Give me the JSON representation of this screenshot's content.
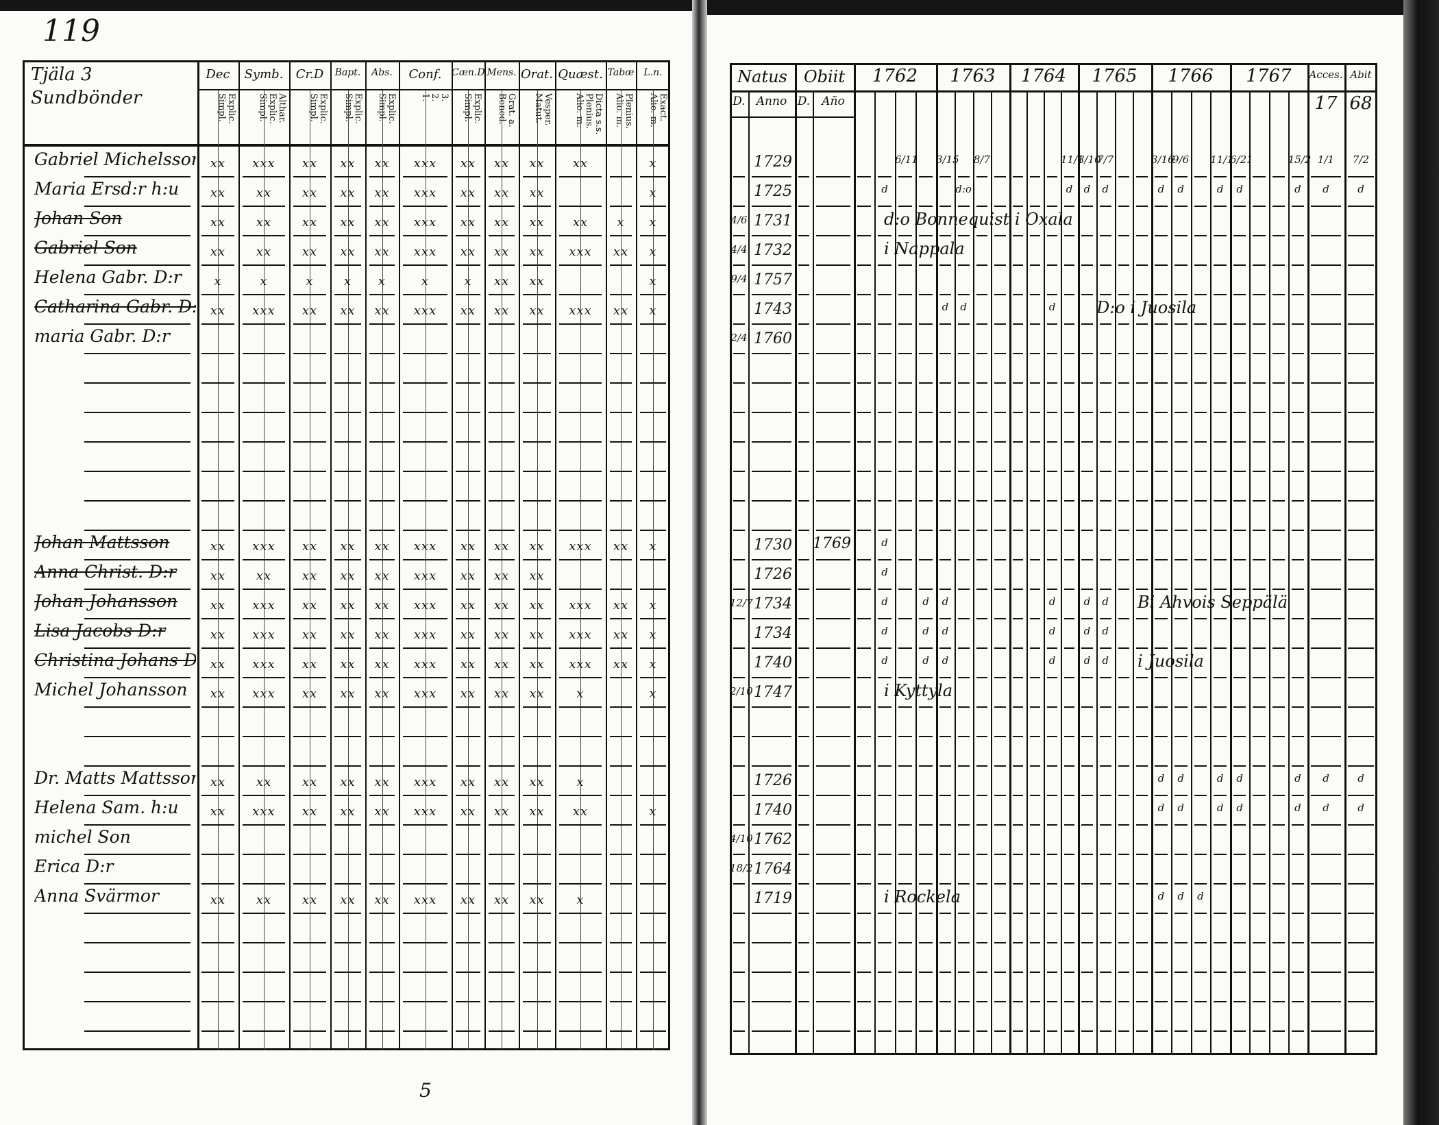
{
  "left_page": {
    "page_number": "119",
    "footer_number": "5",
    "household_heading": "Tjäla 3 Sundbönder",
    "columns": [
      {
        "label": "Dec",
        "sub": "Explic.\nSimpl."
      },
      {
        "label": "Symb.",
        "sub": "Althar.\nExplic.\nSimpl."
      },
      {
        "label": "Cr.D",
        "sub": "Explic.\nSimpl."
      },
      {
        "label": "Bapt.",
        "sub": "Explic.\nSimpl."
      },
      {
        "label": "Abs.",
        "sub": "Explic.\nSimpl."
      },
      {
        "label": "Conf.",
        "sub": "3.\n2.\n1."
      },
      {
        "label": "Cæn.D",
        "sub": "Explic.\nSimpl."
      },
      {
        "label": "Mens.",
        "sub": "Grat. a.\nBened."
      },
      {
        "label": "Orat.",
        "sub": "Vesper.\nMatut."
      },
      {
        "label": "Quæst.",
        "sub": "Dicta s.s.\nPlenius.\nAlio. m."
      },
      {
        "label": "Tabæ",
        "sub": "Plenius.\nAlio. m."
      },
      {
        "label": "L.n.",
        "sub": "Exact.\nAlio. m."
      }
    ],
    "rows": [
      {
        "row": 0,
        "name": "Gabriel Michelsson",
        "struck": false,
        "marks": [
          "xx",
          "xxx",
          "xx",
          "xx",
          "xx",
          "xxx",
          "xx",
          "xx",
          "xx",
          "xx",
          "",
          "x"
        ]
      },
      {
        "row": 1,
        "name": "Maria Ersd:r h:u",
        "struck": false,
        "marks": [
          "xx",
          "xx",
          "xx",
          "xx",
          "xx",
          "xxx",
          "xx",
          "xx",
          "xx",
          "",
          "",
          "x"
        ]
      },
      {
        "row": 2,
        "name": "Johan Son",
        "struck": true,
        "marks": [
          "xx",
          "xx",
          "xx",
          "xx",
          "xx",
          "xxx",
          "xx",
          "xx",
          "xx",
          "xx",
          "x",
          "x"
        ]
      },
      {
        "row": 3,
        "name": "Gabriel Son",
        "struck": true,
        "marks": [
          "xx",
          "xx",
          "xx",
          "xx",
          "xx",
          "xxx",
          "xx",
          "xx",
          "xx",
          "xxx",
          "xx",
          "x"
        ]
      },
      {
        "row": 4,
        "name": "Helena Gabr. D:r",
        "struck": false,
        "marks": [
          "x",
          "x",
          "x",
          "x",
          "x",
          "x",
          "x",
          "xx",
          "xx",
          "",
          "",
          "x"
        ]
      },
      {
        "row": 5,
        "name": "Catharina Gabr. D:r",
        "struck": true,
        "marks": [
          "xx",
          "xxx",
          "xx",
          "xx",
          "xx",
          "xxx",
          "xx",
          "xx",
          "xx",
          "xxx",
          "xx",
          "x"
        ]
      },
      {
        "row": 6,
        "name": "maria Gabr. D:r",
        "struck": false,
        "marks": [
          "",
          "",
          "",
          "",
          "",
          "",
          "",
          "",
          "",
          "",
          "",
          ""
        ]
      },
      {
        "row": 13,
        "name": "Johan Mattsson",
        "struck": true,
        "marks": [
          "xx",
          "xxx",
          "xx",
          "xx",
          "xx",
          "xxx",
          "xx",
          "xx",
          "xx",
          "xxx",
          "xx",
          "x"
        ]
      },
      {
        "row": 14,
        "name": "Anna Christ. D:r",
        "struck": true,
        "marks": [
          "xx",
          "xx",
          "xx",
          "xx",
          "xx",
          "xxx",
          "xx",
          "xx",
          "xx",
          "",
          "",
          ""
        ]
      },
      {
        "row": 15,
        "name": "Johan Johansson",
        "struck": true,
        "marks": [
          "xx",
          "xxx",
          "xx",
          "xx",
          "xx",
          "xxx",
          "xx",
          "xx",
          "xx",
          "xxx",
          "xx",
          "x"
        ]
      },
      {
        "row": 16,
        "name": "Lisa Jacobs D:r",
        "struck": true,
        "marks": [
          "xx",
          "xxx",
          "xx",
          "xx",
          "xx",
          "xxx",
          "xx",
          "xx",
          "xx",
          "xxx",
          "xx",
          "x"
        ]
      },
      {
        "row": 17,
        "name": "Christina Johans D:r",
        "struck": true,
        "marks": [
          "xx",
          "xxx",
          "xx",
          "xx",
          "xx",
          "xxx",
          "xx",
          "xx",
          "xx",
          "xxx",
          "xx",
          "x"
        ]
      },
      {
        "row": 18,
        "name": "Michel Johansson",
        "struck": false,
        "marks": [
          "xx",
          "xxx",
          "xx",
          "xx",
          "xx",
          "xxx",
          "xx",
          "xx",
          "xx",
          "x",
          "",
          "x"
        ]
      },
      {
        "row": 21,
        "name": "Dr. Matts Mattsson",
        "struck": false,
        "marks": [
          "xx",
          "xx",
          "xx",
          "xx",
          "xx",
          "xxx",
          "xx",
          "xx",
          "xx",
          "x",
          "",
          ""
        ]
      },
      {
        "row": 22,
        "name": "Helena Sam. h:u",
        "struck": false,
        "marks": [
          "xx",
          "xxx",
          "xx",
          "xx",
          "xx",
          "xxx",
          "xx",
          "xx",
          "xx",
          "xx",
          "",
          "x"
        ]
      },
      {
        "row": 23,
        "name": "michel Son",
        "struck": false,
        "marks": [
          "",
          "",
          "",
          "",
          "",
          "",
          "",
          "",
          "",
          "",
          "",
          ""
        ]
      },
      {
        "row": 24,
        "name": "Erica D:r",
        "struck": false,
        "marks": [
          "",
          "",
          "",
          "",
          "",
          "",
          "",
          "",
          "",
          "",
          "",
          ""
        ]
      },
      {
        "row": 25,
        "name": "Anna Svärmor",
        "struck": false,
        "marks": [
          "xx",
          "xx",
          "xx",
          "xx",
          "xx",
          "xxx",
          "xx",
          "xx",
          "xx",
          "x",
          "",
          ""
        ]
      }
    ]
  },
  "right_page": {
    "headers": {
      "natus": "Natus",
      "obiit": "Obiit",
      "day": "D.",
      "anno": "Anno",
      "anno_obiit": "Año",
      "years": [
        "1762",
        "1763",
        "1764",
        "1765",
        "1766",
        "1767"
      ],
      "acces": "Acces.",
      "abit": "Abit",
      "acces_year": "17",
      "abit_year": "68"
    },
    "rows": [
      {
        "row": 0,
        "born": "1729",
        "day": "",
        "died": "",
        "marks": [
          [
            2,
            "6/11"
          ],
          [
            4,
            "3/15"
          ],
          [
            6,
            "8/7"
          ],
          [
            11,
            "11/1"
          ],
          [
            12,
            "3/10"
          ],
          [
            13,
            "7/7"
          ],
          [
            16,
            "3/16"
          ],
          [
            17,
            "9/6"
          ],
          [
            19,
            "11/1"
          ],
          [
            20,
            "6/21"
          ],
          [
            23,
            "15/2"
          ],
          [
            24,
            "1/1"
          ],
          [
            25,
            "7/2"
          ]
        ],
        "note": ""
      },
      {
        "row": 1,
        "born": "1725",
        "day": "",
        "died": "",
        "marks": [
          [
            1,
            "d"
          ],
          [
            5,
            "d:o"
          ],
          [
            11,
            "d"
          ],
          [
            12,
            "d"
          ],
          [
            13,
            "d"
          ],
          [
            16,
            "d"
          ],
          [
            17,
            "d"
          ],
          [
            19,
            "d"
          ],
          [
            20,
            "d"
          ],
          [
            23,
            "d"
          ],
          [
            24,
            "d"
          ],
          [
            25,
            "d"
          ]
        ],
        "note": ""
      },
      {
        "row": 2,
        "born": "1731",
        "day": "4/6",
        "died": "",
        "marks": [],
        "note": "d:o Bonnequist i Oxala"
      },
      {
        "row": 3,
        "born": "1732",
        "day": "4/4",
        "died": "",
        "marks": [],
        "note": "i Nappala"
      },
      {
        "row": 4,
        "born": "1757",
        "day": "9/4",
        "died": "",
        "marks": [],
        "note": ""
      },
      {
        "row": 5,
        "born": "1743",
        "day": "",
        "died": "",
        "marks": [
          [
            4,
            "d"
          ],
          [
            5,
            "d"
          ],
          [
            10,
            "d"
          ]
        ],
        "note": "D:o i Juosila"
      },
      {
        "row": 6,
        "born": "1760",
        "day": "2/4",
        "died": "",
        "marks": [],
        "note": ""
      },
      {
        "row": 13,
        "born": "1730",
        "day": "",
        "died": "1769",
        "marks": [
          [
            1,
            "d"
          ]
        ],
        "note": ""
      },
      {
        "row": 14,
        "born": "1726",
        "day": "",
        "died": "",
        "marks": [
          [
            1,
            "d"
          ]
        ],
        "note": ""
      },
      {
        "row": 15,
        "born": "1734",
        "day": "12/7",
        "died": "",
        "marks": [
          [
            1,
            "d"
          ],
          [
            3,
            "d"
          ],
          [
            4,
            "d"
          ],
          [
            10,
            "d"
          ],
          [
            12,
            "d"
          ],
          [
            13,
            "d"
          ]
        ],
        "note": "Bi Ahvois Seppälä"
      },
      {
        "row": 16,
        "born": "1734",
        "day": "",
        "died": "",
        "marks": [
          [
            1,
            "d"
          ],
          [
            3,
            "d"
          ],
          [
            4,
            "d"
          ],
          [
            10,
            "d"
          ],
          [
            12,
            "d"
          ],
          [
            13,
            "d"
          ]
        ],
        "note": ""
      },
      {
        "row": 17,
        "born": "1740",
        "day": "",
        "died": "",
        "marks": [
          [
            1,
            "d"
          ],
          [
            3,
            "d"
          ],
          [
            4,
            "d"
          ],
          [
            10,
            "d"
          ],
          [
            12,
            "d"
          ],
          [
            13,
            "d"
          ]
        ],
        "note": "i Juosila"
      },
      {
        "row": 18,
        "born": "1747",
        "day": "2/10",
        "died": "",
        "marks": [],
        "note": "i Kyttyla"
      },
      {
        "row": 21,
        "born": "1726",
        "day": "",
        "died": "",
        "marks": [
          [
            16,
            "d"
          ],
          [
            17,
            "d"
          ],
          [
            19,
            "d"
          ],
          [
            20,
            "d"
          ],
          [
            23,
            "d"
          ],
          [
            24,
            "d"
          ],
          [
            25,
            "d"
          ]
        ],
        "note": ""
      },
      {
        "row": 22,
        "born": "1740",
        "day": "",
        "died": "",
        "marks": [
          [
            16,
            "d"
          ],
          [
            17,
            "d"
          ],
          [
            19,
            "d"
          ],
          [
            20,
            "d"
          ],
          [
            23,
            "d"
          ],
          [
            24,
            "d"
          ],
          [
            25,
            "d"
          ]
        ],
        "note": ""
      },
      {
        "row": 23,
        "born": "1762",
        "day": "4/10",
        "died": "",
        "marks": [],
        "note": ""
      },
      {
        "row": 24,
        "born": "1764",
        "day": "18/2",
        "died": "",
        "marks": [],
        "note": ""
      },
      {
        "row": 25,
        "born": "1719",
        "day": "",
        "died": "",
        "marks": [
          [
            16,
            "d"
          ],
          [
            17,
            "d"
          ],
          [
            18,
            "d"
          ]
        ],
        "note": "i Rockela"
      }
    ]
  }
}
